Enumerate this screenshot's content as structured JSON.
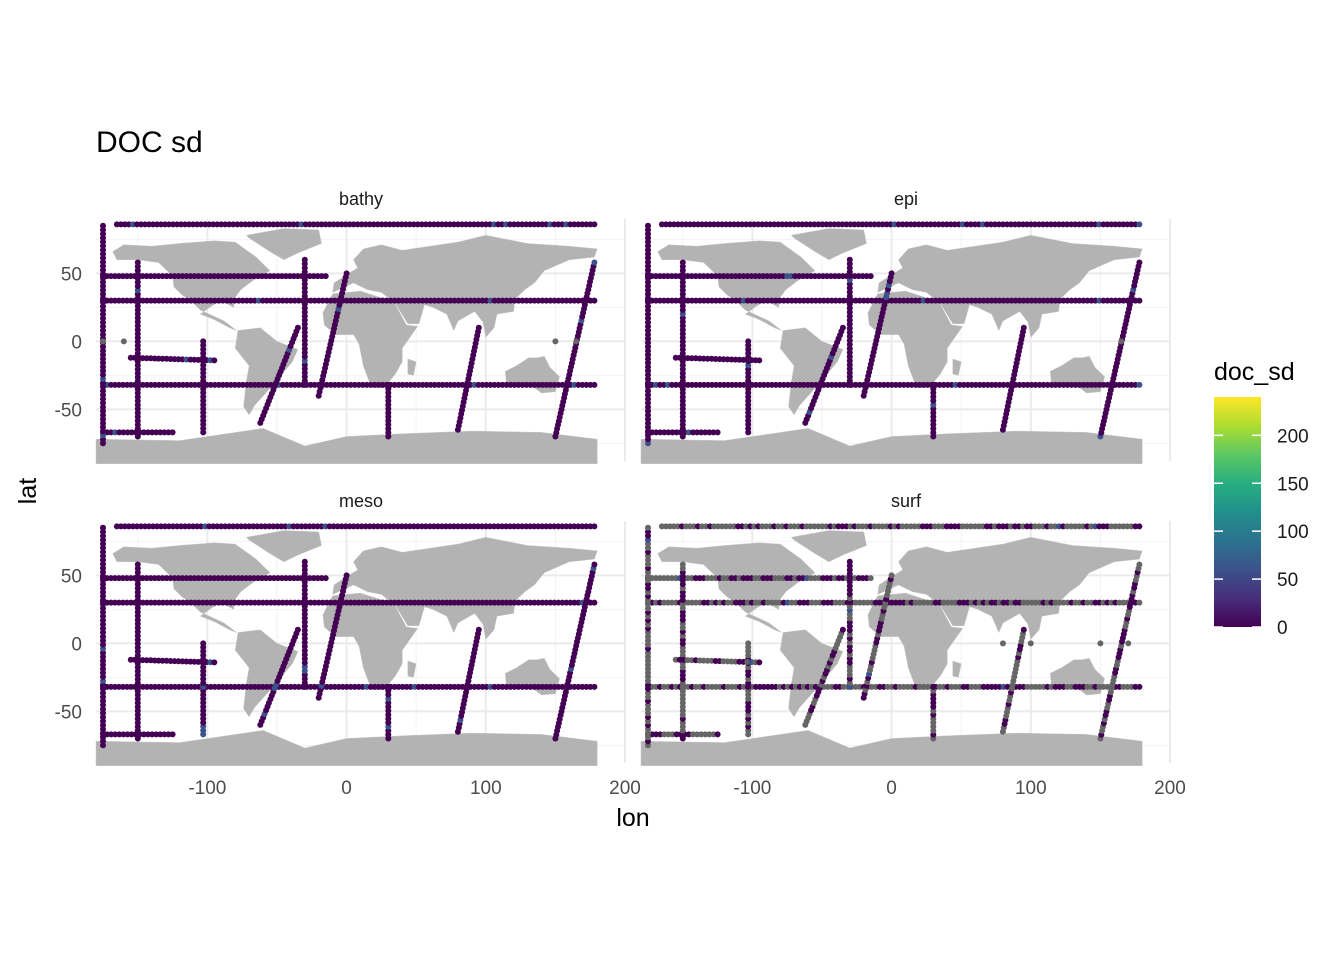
{
  "chart_data": {
    "type": "scatter",
    "title": "DOC sd",
    "xlabel": "lon",
    "ylabel": "lat",
    "xlim": [
      -180,
      200
    ],
    "ylim": [
      -88,
      90
    ],
    "x_ticks": [
      -100,
      0,
      100,
      200
    ],
    "x_tick_labels": [
      "-100",
      "0",
      "100",
      "200"
    ],
    "y_ticks": [
      -50,
      0,
      50
    ],
    "y_tick_labels": [
      "-50",
      "0",
      "50"
    ],
    "grid": true,
    "background_layer": "world land map (grey)",
    "legend": {
      "title": "doc_sd",
      "position": "right",
      "type": "continuous colorbar",
      "palette": "viridis",
      "range": [
        0,
        240
      ],
      "ticks": [
        0,
        50,
        100,
        150,
        200
      ],
      "tick_labels": [
        "0",
        "50",
        "100",
        "150",
        "200"
      ],
      "na_color": "#666666"
    },
    "facets": [
      {
        "name": "bathy",
        "tracks": [
          {
            "lon": [
              -175,
              178
            ],
            "lat": [
              30,
              30
            ]
          },
          {
            "lon": [
              -175,
              178
            ],
            "lat": [
              -32,
              -32
            ]
          },
          {
            "lon": [
              -175,
              -15
            ],
            "lat": [
              48,
              48
            ]
          },
          {
            "lon": [
              -175,
              -125
            ],
            "lat": [
              -67,
              -67
            ]
          },
          {
            "lon": [
              -175,
              -175
            ],
            "lat": [
              -75,
              85
            ]
          },
          {
            "lon": [
              -150,
              -150
            ],
            "lat": [
              -70,
              58
            ]
          },
          {
            "lon": [
              -103,
              -103
            ],
            "lat": [
              -67,
              0
            ]
          },
          {
            "lon": [
              -155,
              -95
            ],
            "lat": [
              -12,
              -14
            ]
          },
          {
            "lon": [
              -30,
              -30
            ],
            "lat": [
              -32,
              60
            ]
          },
          {
            "lon": [
              30,
              30
            ],
            "lat": [
              -70,
              -32
            ]
          },
          {
            "lon": [
              -62,
              -35
            ],
            "lat": [
              -60,
              10
            ]
          },
          {
            "lon": [
              -20,
              0
            ],
            "lat": [
              -40,
              50
            ]
          },
          {
            "lon": [
              80,
              95
            ],
            "lat": [
              -65,
              10
            ]
          },
          {
            "lon": [
              150,
              178
            ],
            "lat": [
              -70,
              58
            ]
          },
          {
            "lon": [
              -165,
              178
            ],
            "lat": [
              86,
              86
            ]
          }
        ],
        "na_points": [
          {
            "lon": -175,
            "lat": 0
          },
          {
            "lon": -160,
            "lat": 0
          },
          {
            "lon": 150,
            "lat": 0
          },
          {
            "lon": 165,
            "lat": 0
          }
        ]
      },
      {
        "name": "epi",
        "tracks": [
          {
            "lon": [
              -175,
              178
            ],
            "lat": [
              30,
              30
            ]
          },
          {
            "lon": [
              -175,
              178
            ],
            "lat": [
              -32,
              -32
            ]
          },
          {
            "lon": [
              -175,
              -15
            ],
            "lat": [
              48,
              48
            ]
          },
          {
            "lon": [
              -175,
              -125
            ],
            "lat": [
              -67,
              -67
            ]
          },
          {
            "lon": [
              -175,
              -175
            ],
            "lat": [
              -75,
              85
            ]
          },
          {
            "lon": [
              -150,
              -150
            ],
            "lat": [
              -70,
              58
            ]
          },
          {
            "lon": [
              -103,
              -103
            ],
            "lat": [
              -67,
              0
            ]
          },
          {
            "lon": [
              -155,
              -95
            ],
            "lat": [
              -12,
              -14
            ]
          },
          {
            "lon": [
              -30,
              -30
            ],
            "lat": [
              -32,
              60
            ]
          },
          {
            "lon": [
              30,
              30
            ],
            "lat": [
              -70,
              -32
            ]
          },
          {
            "lon": [
              -62,
              -35
            ],
            "lat": [
              -60,
              10
            ]
          },
          {
            "lon": [
              -20,
              0
            ],
            "lat": [
              -40,
              50
            ]
          },
          {
            "lon": [
              80,
              95
            ],
            "lat": [
              -65,
              10
            ]
          },
          {
            "lon": [
              150,
              178
            ],
            "lat": [
              -70,
              58
            ]
          },
          {
            "lon": [
              -165,
              178
            ],
            "lat": [
              86,
              86
            ]
          }
        ],
        "na_points": [
          {
            "lon": 165,
            "lat": 0
          }
        ]
      },
      {
        "name": "meso",
        "tracks": [
          {
            "lon": [
              -175,
              178
            ],
            "lat": [
              30,
              30
            ]
          },
          {
            "lon": [
              -175,
              178
            ],
            "lat": [
              -32,
              -32
            ]
          },
          {
            "lon": [
              -175,
              -15
            ],
            "lat": [
              48,
              48
            ]
          },
          {
            "lon": [
              -175,
              -125
            ],
            "lat": [
              -67,
              -67
            ]
          },
          {
            "lon": [
              -175,
              -175
            ],
            "lat": [
              -75,
              85
            ]
          },
          {
            "lon": [
              -150,
              -150
            ],
            "lat": [
              -70,
              58
            ]
          },
          {
            "lon": [
              -103,
              -103
            ],
            "lat": [
              -67,
              0
            ]
          },
          {
            "lon": [
              -155,
              -95
            ],
            "lat": [
              -12,
              -14
            ]
          },
          {
            "lon": [
              -30,
              -30
            ],
            "lat": [
              -32,
              60
            ]
          },
          {
            "lon": [
              30,
              30
            ],
            "lat": [
              -70,
              -32
            ]
          },
          {
            "lon": [
              -62,
              -35
            ],
            "lat": [
              -60,
              10
            ]
          },
          {
            "lon": [
              -20,
              0
            ],
            "lat": [
              -40,
              50
            ]
          },
          {
            "lon": [
              80,
              95
            ],
            "lat": [
              -65,
              10
            ]
          },
          {
            "lon": [
              150,
              178
            ],
            "lat": [
              -70,
              58
            ]
          },
          {
            "lon": [
              -165,
              178
            ],
            "lat": [
              86,
              86
            ]
          }
        ],
        "na_points": []
      },
      {
        "name": "surf",
        "tracks": [
          {
            "lon": [
              -175,
              178
            ],
            "lat": [
              30,
              30
            ]
          },
          {
            "lon": [
              -175,
              178
            ],
            "lat": [
              -32,
              -32
            ]
          },
          {
            "lon": [
              -175,
              -15
            ],
            "lat": [
              48,
              48
            ]
          },
          {
            "lon": [
              -175,
              -125
            ],
            "lat": [
              -67,
              -67
            ]
          },
          {
            "lon": [
              -175,
              -175
            ],
            "lat": [
              -75,
              85
            ]
          },
          {
            "lon": [
              -150,
              -150
            ],
            "lat": [
              -70,
              58
            ]
          },
          {
            "lon": [
              -103,
              -103
            ],
            "lat": [
              -67,
              0
            ]
          },
          {
            "lon": [
              -155,
              -95
            ],
            "lat": [
              -12,
              -14
            ]
          },
          {
            "lon": [
              -30,
              -30
            ],
            "lat": [
              -32,
              60
            ]
          },
          {
            "lon": [
              30,
              30
            ],
            "lat": [
              -70,
              -32
            ]
          },
          {
            "lon": [
              -62,
              -35
            ],
            "lat": [
              -60,
              10
            ]
          },
          {
            "lon": [
              -20,
              0
            ],
            "lat": [
              -40,
              50
            ]
          },
          {
            "lon": [
              80,
              95
            ],
            "lat": [
              -65,
              10
            ]
          },
          {
            "lon": [
              150,
              178
            ],
            "lat": [
              -70,
              58
            ]
          },
          {
            "lon": [
              -165,
              178
            ],
            "lat": [
              86,
              86
            ]
          }
        ],
        "na_points": [
          {
            "lon": 80,
            "lat": 0
          },
          {
            "lon": 100,
            "lat": 0
          },
          {
            "lon": 150,
            "lat": 0
          },
          {
            "lon": 170,
            "lat": 0
          }
        ],
        "na_fraction": 0.55
      }
    ]
  }
}
